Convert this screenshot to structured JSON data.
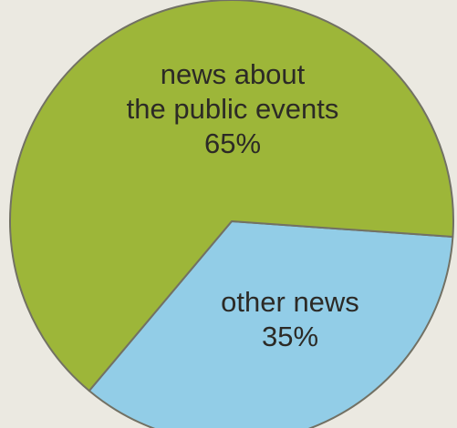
{
  "chart_data": {
    "type": "pie",
    "title": "",
    "slices": [
      {
        "label_lines": [
          "news about",
          "the public events"
        ],
        "value": 65,
        "value_label": "65%",
        "color": "#9db639"
      },
      {
        "label_lines": [
          "other news"
        ],
        "value": 35,
        "value_label": "35%",
        "color": "#92cde7"
      }
    ],
    "edge_color": "#727164",
    "legend": "none"
  },
  "colors": {
    "background": "#ebe9e1"
  }
}
